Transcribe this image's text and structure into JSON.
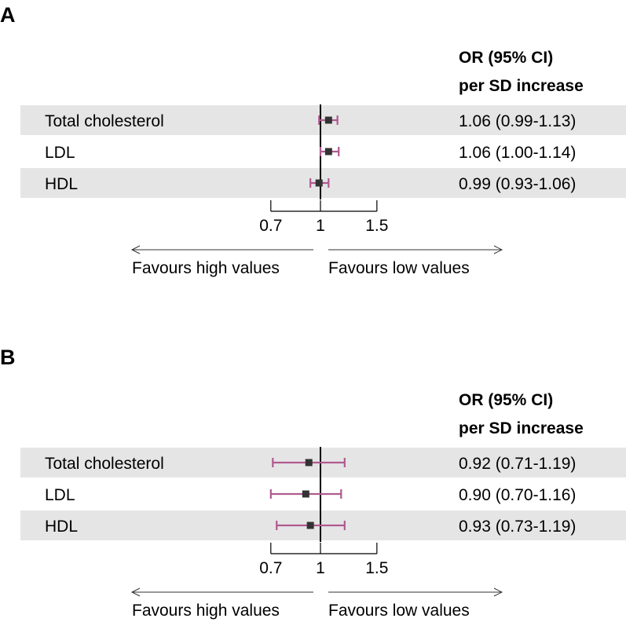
{
  "colors": {
    "row_band": "#e5e5e5",
    "ci_line": "#b05a90",
    "point": "#333333",
    "axis": "#000000"
  },
  "chart_data": [
    {
      "type": "forest",
      "panel_label": "A",
      "header_line1": "OR (95% CI)",
      "header_line2": "per SD increase",
      "rows": [
        {
          "label": "Total cholesterol",
          "or": 1.06,
          "lo": 0.99,
          "hi": 1.13,
          "text": "1.06 (0.99-1.13)",
          "shaded": true
        },
        {
          "label": "LDL",
          "or": 1.06,
          "lo": 1.0,
          "hi": 1.14,
          "text": "1.06 (1.00-1.14)",
          "shaded": false
        },
        {
          "label": "HDL",
          "or": 0.99,
          "lo": 0.93,
          "hi": 1.06,
          "text": "0.99 (0.93-1.06)",
          "shaded": true
        }
      ],
      "xscale": "log",
      "xlim": [
        0.7,
        1.5
      ],
      "reference": 1,
      "ticks": [
        {
          "v": 0.7,
          "label": "0.7"
        },
        {
          "v": 1,
          "label": "1"
        },
        {
          "v": 1.5,
          "label": "1.5"
        }
      ],
      "left_arrow_label": "Favours high values",
      "right_arrow_label": "Favours low values"
    },
    {
      "type": "forest",
      "panel_label": "B",
      "header_line1": "OR (95% CI)",
      "header_line2": "per SD increase",
      "rows": [
        {
          "label": "Total cholesterol",
          "or": 0.92,
          "lo": 0.71,
          "hi": 1.19,
          "text": "0.92 (0.71-1.19)",
          "shaded": true
        },
        {
          "label": "LDL",
          "or": 0.9,
          "lo": 0.7,
          "hi": 1.16,
          "text": "0.90 (0.70-1.16)",
          "shaded": false
        },
        {
          "label": "HDL",
          "or": 0.93,
          "lo": 0.73,
          "hi": 1.19,
          "text": "0.93 (0.73-1.19)",
          "shaded": true
        }
      ],
      "xscale": "log",
      "xlim": [
        0.7,
        1.5
      ],
      "reference": 1,
      "ticks": [
        {
          "v": 0.7,
          "label": "0.7"
        },
        {
          "v": 1,
          "label": "1"
        },
        {
          "v": 1.5,
          "label": "1.5"
        }
      ],
      "left_arrow_label": "Favours high values",
      "right_arrow_label": "Favours low values"
    }
  ]
}
